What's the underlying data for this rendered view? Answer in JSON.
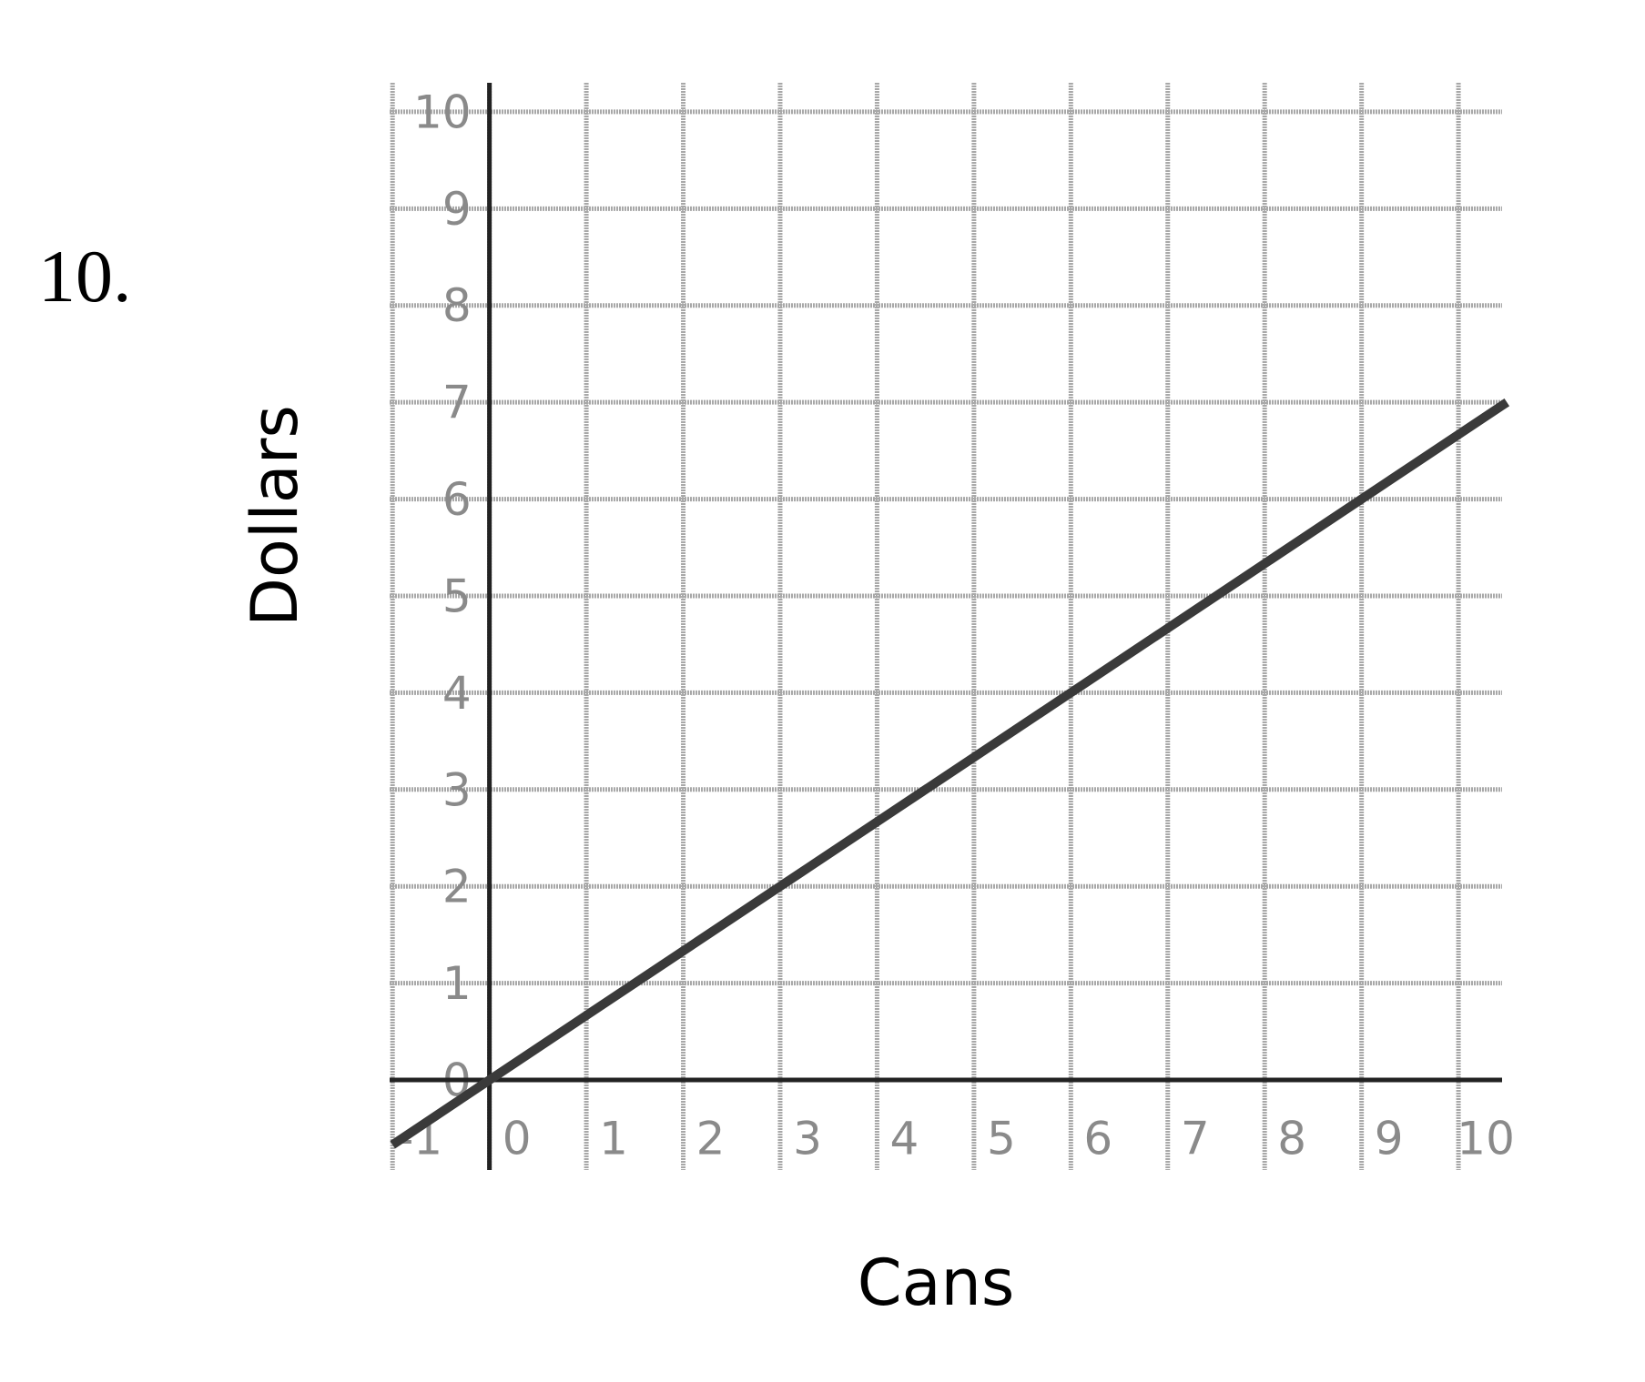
{
  "problem_number": "10.",
  "chart_data": {
    "type": "line",
    "x_label": "Cans",
    "y_label": "Dollars",
    "x": [
      -1,
      0,
      3,
      6,
      9,
      10.5
    ],
    "series": [
      {
        "color": "#3a3a3a",
        "values": [
          -0.67,
          0,
          2,
          4,
          6,
          7
        ]
      }
    ],
    "xlim": [
      -1.03,
      10.45
    ],
    "ylim": [
      -0.93,
      10.3
    ],
    "xticks": [
      -1,
      0,
      1,
      2,
      3,
      4,
      5,
      6,
      7,
      8,
      9,
      10
    ],
    "yticks": [
      0,
      1,
      2,
      3,
      4,
      5,
      6,
      7,
      8,
      9,
      10
    ],
    "grid": true
  }
}
